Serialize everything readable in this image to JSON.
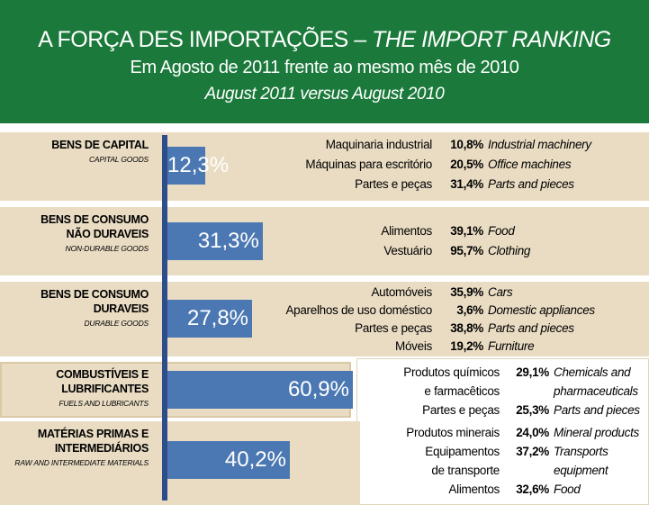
{
  "header": {
    "title": "A FORÇA DES IMPORTAÇÕES – ",
    "title_en": "THE IMPORT RANKING",
    "subtitle": "Em Agosto de 2011 frente ao mesmo mês de 2010",
    "subtitle_en": "August 2011 versus August 2010"
  },
  "chart_data": {
    "type": "bar",
    "categories": [
      "BENS DE CAPITAL",
      "BENS DE CONSUMO\nNÃO DURAVEIS",
      "BENS DE CONSUMO\nDURAVEIS",
      "COMBUSTÍVEIS E\nLUBRIFICANTES",
      "MATÉRIAS PRIMAS E\nINTERMEDIÁRIOS"
    ],
    "categories_en": [
      "CAPITAL GOODS",
      "NON-DURABLE GOODS",
      "DURABLE GOODS",
      "FUELS AND LUBRICANTS",
      "RAW AND INTERMEDIATE MATERIALS"
    ],
    "values": [
      12.3,
      31.3,
      27.8,
      60.9,
      40.2
    ],
    "value_labels": [
      "12,3%",
      "31,3%",
      "27,8%",
      "60,9%",
      "40,2%"
    ],
    "color": "#4b78b2",
    "details": [
      [
        {
          "name": "Maquinaria industrial",
          "value": "10,8%",
          "name_en": "Industrial machinery"
        },
        {
          "name": "Máquinas para escritório",
          "value": "20,5%",
          "name_en": "Office machines"
        },
        {
          "name": "Partes e peças",
          "value": "31,4%",
          "name_en": "Parts and pieces"
        }
      ],
      [
        {
          "name": "Alimentos",
          "value": "39,1%",
          "name_en": "Food"
        },
        {
          "name": "Vestuário",
          "value": "95,7%",
          "name_en": "Clothing"
        }
      ],
      [
        {
          "name": "Automóveis",
          "value": "35,9%",
          "name_en": "Cars"
        },
        {
          "name": "Aparelhos de uso doméstico",
          "value": "3,6%",
          "name_en": "Domestic appliances"
        },
        {
          "name": "Partes e peças",
          "value": "38,8%",
          "name_en": "Parts and pieces"
        },
        {
          "name": "Móveis",
          "value": "19,2%",
          "name_en": "Furniture"
        }
      ],
      [
        {
          "name": "Produtos químicos\ne farmacêticos",
          "value": "29,1%",
          "name_en": "Chemicals and\npharmaceuticals"
        },
        {
          "name": "Partes e peças",
          "value": "25,3%",
          "name_en": "Parts and pieces"
        }
      ],
      [
        {
          "name": "Produtos minerais",
          "value": "24,0%",
          "name_en": "Mineral products"
        },
        {
          "name": "Equipamentos\nde transporte",
          "value": "37,2%",
          "name_en": "Transports\nequipment"
        },
        {
          "name": "Alimentos",
          "value": "32,6%",
          "name_en": "Food"
        }
      ]
    ]
  }
}
